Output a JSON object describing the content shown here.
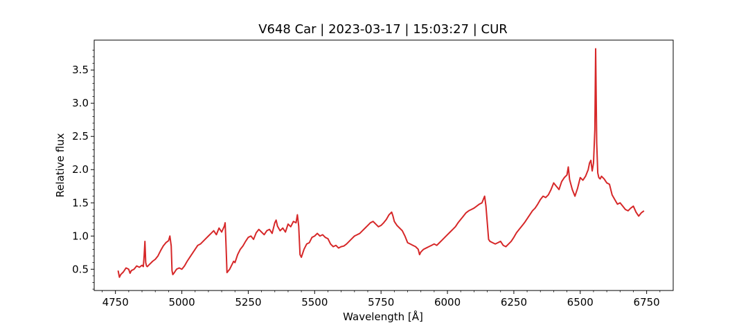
{
  "chart_data": {
    "type": "line",
    "title": "V648 Car | 2023-03-17 | 15:03:27 | CUR",
    "xlabel": "Wavelength [Å]",
    "ylabel": "Relative flux",
    "xlim": [
      4670,
      6850
    ],
    "ylim": [
      0.18,
      3.95
    ],
    "xticks": [
      4750,
      5000,
      5250,
      5500,
      5750,
      6000,
      6250,
      6500,
      6750
    ],
    "yticks": [
      0.5,
      1.0,
      1.5,
      2.0,
      2.5,
      3.0,
      3.5
    ],
    "grid": false,
    "legend": "none",
    "line_color": "#d62728",
    "series": [
      {
        "x": [
          4760,
          4765,
          4770,
          4780,
          4790,
          4800,
          4805,
          4810,
          4820,
          4830,
          4840,
          4850,
          4855,
          4858,
          4861,
          4864,
          4867,
          4870,
          4880,
          4890,
          4900,
          4910,
          4920,
          4930,
          4940,
          4950,
          4955,
          4960,
          4963,
          4966,
          4970,
          4980,
          4990,
          5000,
          5010,
          5020,
          5030,
          5040,
          5050,
          5060,
          5070,
          5080,
          5090,
          5100,
          5110,
          5120,
          5130,
          5140,
          5150,
          5160,
          5163,
          5166,
          5170,
          5180,
          5190,
          5195,
          5200,
          5205,
          5210,
          5220,
          5230,
          5240,
          5250,
          5260,
          5270,
          5280,
          5290,
          5300,
          5310,
          5320,
          5330,
          5340,
          5350,
          5355,
          5360,
          5370,
          5380,
          5390,
          5400,
          5410,
          5420,
          5430,
          5435,
          5440,
          5445,
          5450,
          5460,
          5470,
          5480,
          5490,
          5500,
          5510,
          5520,
          5530,
          5540,
          5550,
          5560,
          5570,
          5580,
          5590,
          5600,
          5610,
          5620,
          5630,
          5640,
          5650,
          5660,
          5670,
          5680,
          5690,
          5700,
          5710,
          5720,
          5730,
          5740,
          5750,
          5760,
          5770,
          5780,
          5790,
          5795,
          5800,
          5810,
          5820,
          5830,
          5840,
          5850,
          5860,
          5870,
          5880,
          5890,
          5895,
          5900,
          5910,
          5920,
          5930,
          5940,
          5950,
          5960,
          5970,
          5980,
          5990,
          6000,
          6010,
          6020,
          6030,
          6040,
          6050,
          6060,
          6070,
          6080,
          6090,
          6100,
          6110,
          6120,
          6130,
          6140,
          6145,
          6150,
          6155,
          6160,
          6170,
          6180,
          6190,
          6200,
          6210,
          6220,
          6230,
          6240,
          6250,
          6260,
          6270,
          6280,
          6290,
          6300,
          6310,
          6320,
          6330,
          6340,
          6350,
          6360,
          6370,
          6380,
          6390,
          6400,
          6410,
          6420,
          6430,
          6440,
          6450,
          6455,
          6460,
          6470,
          6480,
          6490,
          6500,
          6510,
          6520,
          6530,
          6535,
          6540,
          6545,
          6550,
          6555,
          6558,
          6562,
          6566,
          6570,
          6575,
          6580,
          6590,
          6600,
          6610,
          6620,
          6630,
          6640,
          6650,
          6660,
          6670,
          6680,
          6690,
          6700,
          6710,
          6720,
          6730,
          6740
        ],
        "y": [
          0.48,
          0.38,
          0.42,
          0.46,
          0.52,
          0.5,
          0.44,
          0.48,
          0.5,
          0.55,
          0.53,
          0.56,
          0.54,
          0.7,
          0.92,
          0.6,
          0.55,
          0.54,
          0.58,
          0.62,
          0.65,
          0.7,
          0.78,
          0.85,
          0.9,
          0.93,
          1.0,
          0.85,
          0.48,
          0.42,
          0.44,
          0.5,
          0.52,
          0.5,
          0.55,
          0.62,
          0.68,
          0.74,
          0.8,
          0.86,
          0.88,
          0.92,
          0.96,
          1.0,
          1.04,
          1.08,
          1.02,
          1.12,
          1.06,
          1.15,
          1.2,
          0.9,
          0.45,
          0.5,
          0.58,
          0.62,
          0.6,
          0.66,
          0.72,
          0.8,
          0.85,
          0.92,
          0.98,
          1.0,
          0.95,
          1.05,
          1.1,
          1.06,
          1.02,
          1.08,
          1.1,
          1.04,
          1.2,
          1.24,
          1.15,
          1.08,
          1.12,
          1.06,
          1.18,
          1.14,
          1.22,
          1.2,
          1.32,
          1.15,
          0.72,
          0.68,
          0.8,
          0.88,
          0.9,
          0.98,
          1.0,
          1.04,
          1.0,
          1.02,
          0.98,
          0.96,
          0.88,
          0.84,
          0.86,
          0.82,
          0.84,
          0.85,
          0.88,
          0.92,
          0.96,
          1.0,
          1.02,
          1.04,
          1.08,
          1.12,
          1.16,
          1.2,
          1.22,
          1.18,
          1.14,
          1.16,
          1.2,
          1.25,
          1.32,
          1.36,
          1.3,
          1.22,
          1.16,
          1.12,
          1.08,
          1.0,
          0.9,
          0.88,
          0.86,
          0.84,
          0.8,
          0.72,
          0.76,
          0.8,
          0.82,
          0.84,
          0.86,
          0.88,
          0.86,
          0.9,
          0.94,
          0.98,
          1.02,
          1.06,
          1.1,
          1.14,
          1.2,
          1.25,
          1.3,
          1.35,
          1.38,
          1.4,
          1.42,
          1.45,
          1.48,
          1.5,
          1.6,
          1.45,
          1.2,
          0.95,
          0.92,
          0.9,
          0.88,
          0.9,
          0.92,
          0.86,
          0.84,
          0.88,
          0.92,
          0.98,
          1.05,
          1.1,
          1.15,
          1.2,
          1.26,
          1.32,
          1.38,
          1.42,
          1.48,
          1.55,
          1.6,
          1.58,
          1.62,
          1.7,
          1.8,
          1.75,
          1.7,
          1.82,
          1.88,
          1.92,
          2.04,
          1.85,
          1.7,
          1.6,
          1.72,
          1.88,
          1.84,
          1.9,
          2.0,
          2.1,
          2.14,
          1.98,
          2.1,
          2.6,
          3.82,
          2.4,
          1.95,
          1.88,
          1.86,
          1.9,
          1.86,
          1.8,
          1.78,
          1.62,
          1.55,
          1.48,
          1.5,
          1.45,
          1.4,
          1.38,
          1.42,
          1.45,
          1.36,
          1.3,
          1.35,
          1.38
        ]
      }
    ]
  }
}
